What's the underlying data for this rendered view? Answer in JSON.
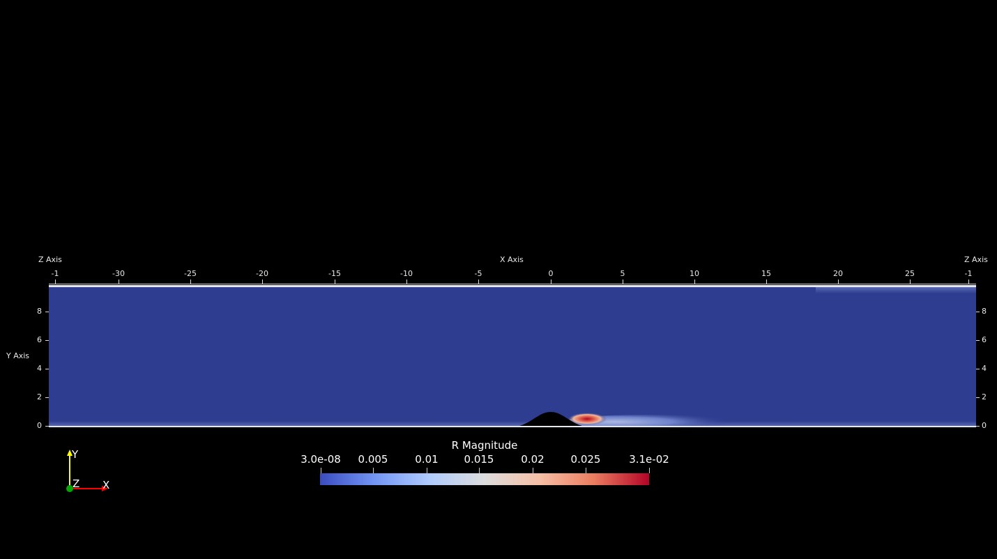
{
  "axes": {
    "x_title": "X Axis",
    "y_title": "Y Axis",
    "z_title_left": "Z Axis",
    "z_title_right": "Z Axis",
    "x_ticks": [
      "-1",
      "-30",
      "-25",
      "-20",
      "-15",
      "-10",
      "-5",
      "0",
      "5",
      "10",
      "15",
      "20",
      "25",
      "-1"
    ],
    "y_ticks_left": [
      "8",
      "6",
      "4",
      "2",
      "0"
    ],
    "y_ticks_right": [
      "8",
      "6",
      "4",
      "2",
      "0"
    ]
  },
  "colorbar": {
    "title": "R Magnitude",
    "tick_labels": [
      "3.0e-08",
      "0.005",
      "0.01",
      "0.015",
      "0.02",
      "0.025",
      "3.1e-02"
    ],
    "colors": [
      "#3b4cc0",
      "#7396f5",
      "#b0cbfc",
      "#dddddd",
      "#f6bfa6",
      "#ea7b60",
      "#b40426"
    ]
  },
  "field": {
    "background_color": "#2e3d8f",
    "obstacle_color": "#000000"
  },
  "orientation": {
    "y_label": "Y",
    "z_label": "Z",
    "x_label": "X",
    "y_color": "#ffff00",
    "x_color": "#ff0000",
    "z_color": "#00aa00"
  }
}
